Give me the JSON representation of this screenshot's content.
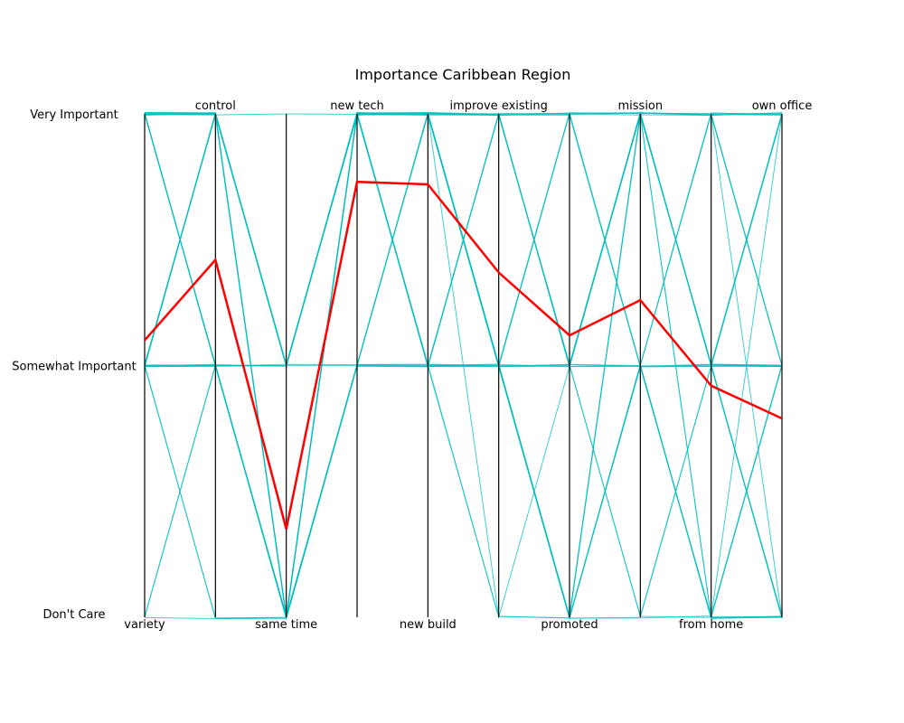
{
  "chart_data": {
    "type": "parallel-coordinates",
    "title": "Importance Caribbean Region",
    "axes": [
      "variety",
      "control",
      "same time",
      "new tech",
      "new build",
      "improve existing",
      "promoted",
      "mission",
      "from home",
      "own office"
    ],
    "levels": [
      "Don't Care",
      "Somewhat Important",
      "Very Important"
    ],
    "level_values": [
      0,
      1,
      2
    ],
    "ylim": [
      0,
      2
    ],
    "grid": false,
    "colors": {
      "background_lines": "#00bfbf",
      "highlight": "#ff0000",
      "axis": "#000000"
    },
    "highlight": {
      "name": "",
      "values": [
        1.1,
        1.42,
        0.35,
        1.73,
        1.72,
        1.37,
        1.12,
        1.26,
        0.92,
        0.79
      ]
    },
    "background_series": [
      [
        2,
        2,
        1,
        2,
        2,
        1,
        1,
        2,
        1,
        1
      ],
      [
        1,
        1,
        0,
        1,
        1,
        0,
        0,
        1,
        0,
        0
      ],
      [
        2,
        1,
        0,
        2,
        1,
        1,
        0,
        2,
        1,
        0
      ],
      [
        1,
        2,
        1,
        2,
        2,
        2,
        1,
        1,
        2,
        2
      ],
      [
        0,
        1,
        0,
        1,
        2,
        1,
        0,
        0,
        0,
        1
      ],
      [
        2,
        2,
        0,
        2,
        2,
        1,
        2,
        2,
        1,
        2
      ],
      [
        1,
        0,
        0,
        1,
        1,
        2,
        1,
        1,
        0,
        0
      ],
      [
        2,
        1,
        1,
        2,
        2,
        2,
        1,
        2,
        2,
        1
      ],
      [
        1,
        2,
        0,
        2,
        1,
        1,
        0,
        1,
        1,
        0
      ],
      [
        0,
        1,
        1,
        2,
        2,
        1,
        2,
        2,
        1,
        1
      ],
      [
        2,
        2,
        1,
        2,
        2,
        2,
        2,
        2,
        2,
        2
      ],
      [
        1,
        1,
        0,
        1,
        1,
        1,
        0,
        1,
        0,
        0
      ],
      [
        2,
        1,
        0,
        2,
        2,
        1,
        1,
        2,
        1,
        1
      ],
      [
        1,
        2,
        0,
        1,
        1,
        0,
        1,
        1,
        2,
        2
      ],
      [
        2,
        2,
        1,
        2,
        1,
        2,
        2,
        1,
        1,
        0
      ],
      [
        1,
        1,
        1,
        2,
        2,
        1,
        0,
        0,
        1,
        0
      ],
      [
        2,
        2,
        0,
        2,
        2,
        1,
        1,
        2,
        0,
        1
      ],
      [
        1,
        2,
        1,
        1,
        2,
        2,
        1,
        2,
        2,
        2
      ],
      [
        0,
        0,
        0,
        1,
        1,
        1,
        0,
        1,
        0,
        0
      ],
      [
        2,
        1,
        0,
        2,
        2,
        2,
        2,
        1,
        1,
        1
      ],
      [
        1,
        2,
        1,
        2,
        1,
        1,
        0,
        2,
        2,
        2
      ],
      [
        2,
        2,
        2,
        2,
        2,
        2,
        1,
        2,
        1,
        2
      ],
      [
        1,
        1,
        0,
        2,
        2,
        1,
        1,
        0,
        0,
        1
      ],
      [
        2,
        1,
        1,
        1,
        1,
        2,
        2,
        2,
        2,
        0
      ],
      [
        1,
        2,
        0,
        2,
        2,
        1,
        0,
        1,
        1,
        2
      ],
      [
        2,
        2,
        1,
        2,
        2,
        1,
        1,
        2,
        0,
        0
      ],
      [
        1,
        1,
        1,
        2,
        1,
        2,
        1,
        1,
        1,
        1
      ],
      [
        2,
        2,
        0,
        1,
        2,
        0,
        0,
        2,
        2,
        1
      ],
      [
        1,
        0,
        0,
        2,
        2,
        1,
        0,
        1,
        0,
        0
      ],
      [
        2,
        1,
        1,
        2,
        2,
        2,
        2,
        2,
        1,
        2
      ],
      [
        1,
        2,
        0,
        2,
        1,
        1,
        1,
        0,
        1,
        0
      ],
      [
        2,
        2,
        1,
        2,
        2,
        2,
        1,
        2,
        2,
        1
      ],
      [
        1,
        1,
        0,
        1,
        2,
        1,
        0,
        1,
        0,
        2
      ],
      [
        2,
        1,
        0,
        2,
        2,
        2,
        1,
        2,
        1,
        0
      ],
      [
        1,
        2,
        1,
        2,
        1,
        1,
        2,
        1,
        2,
        2
      ],
      [
        2,
        2,
        1,
        2,
        2,
        1,
        0,
        2,
        1,
        1
      ]
    ]
  }
}
